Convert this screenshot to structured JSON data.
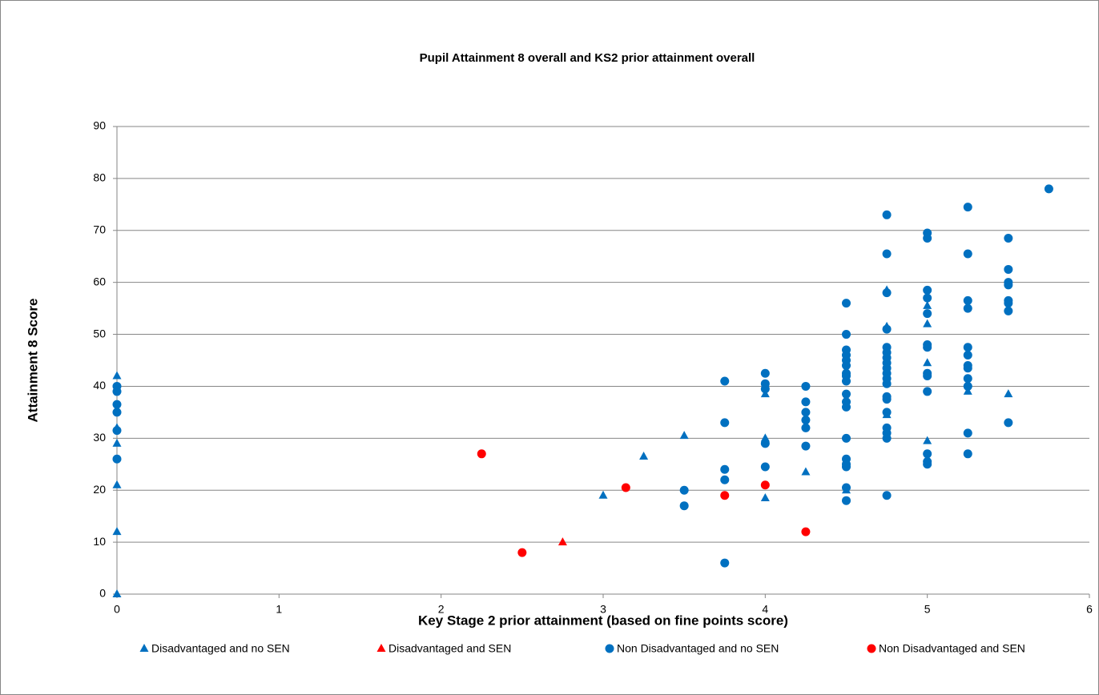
{
  "chart_data": {
    "type": "scatter",
    "title": "Pupil Attainment 8 overall and KS2 prior attainment overall",
    "x_label": "Key Stage 2 prior attainment (based on fine points score)",
    "y_label": "Attainment 8 Score",
    "xlim": [
      0,
      6
    ],
    "xticks": [
      0,
      1,
      2,
      3,
      4,
      5,
      6
    ],
    "ylim": [
      0,
      90
    ],
    "yticks": [
      0,
      10,
      20,
      30,
      40,
      50,
      60,
      70,
      80,
      90
    ],
    "grid": true,
    "legend": "bottom",
    "series": [
      {
        "name": "Disadvantaged and no SEN",
        "color": "#0070c0",
        "marker": "triangle",
        "x": [
          0,
          0,
          0,
          0,
          0,
          0,
          3,
          3.25,
          3.5,
          4,
          4,
          4,
          4.25,
          4.5,
          4.75,
          4.75,
          4.75,
          5,
          5,
          5,
          5,
          5.25,
          5.5
        ],
        "y": [
          42,
          32,
          29,
          21,
          12,
          0,
          19,
          26.5,
          30.5,
          38.5,
          30,
          18.5,
          23.5,
          20,
          58.5,
          51.5,
          34.5,
          55.5,
          52,
          44.5,
          29.5,
          39,
          38.5
        ]
      },
      {
        "name": "Disadvantaged and SEN",
        "color": "#ff0000",
        "marker": "triangle",
        "x": [
          2.75
        ],
        "y": [
          10
        ]
      },
      {
        "name": "Non Disadvantaged and no SEN",
        "color": "#0070c0",
        "marker": "circle",
        "x": [
          0,
          0,
          0,
          0,
          0,
          0,
          3.5,
          3.5,
          3.75,
          3.75,
          3.75,
          3.75,
          3.75,
          4,
          4,
          4,
          4,
          4,
          4.25,
          4.25,
          4.25,
          4.25,
          4.25,
          4.25,
          4.5,
          4.5,
          4.5,
          4.5,
          4.5,
          4.5,
          4.5,
          4.5,
          4.5,
          4.5,
          4.5,
          4.5,
          4.5,
          4.5,
          4.5,
          4.5,
          4.5,
          4.5,
          4.75,
          4.75,
          4.75,
          4.75,
          4.75,
          4.75,
          4.75,
          4.75,
          4.75,
          4.75,
          4.75,
          4.75,
          4.75,
          4.75,
          4.75,
          4.75,
          4.75,
          4.75,
          4.75,
          5,
          5,
          5,
          5,
          5,
          5,
          5,
          5,
          5,
          5,
          5,
          5,
          5,
          5.25,
          5.25,
          5.25,
          5.25,
          5.25,
          5.25,
          5.25,
          5.25,
          5.25,
          5.25,
          5.25,
          5.25,
          5.5,
          5.5,
          5.5,
          5.5,
          5.5,
          5.5,
          5.5,
          5.5,
          5.75
        ],
        "y": [
          40,
          39,
          36.5,
          35,
          31.5,
          26,
          20,
          17,
          41,
          33,
          24,
          22,
          6,
          42.5,
          40.5,
          39.5,
          29,
          24.5,
          40,
          37,
          35,
          33.5,
          32,
          28.5,
          56,
          50,
          47,
          46,
          45,
          44,
          42.5,
          42,
          41,
          38.5,
          37,
          36,
          30,
          26,
          25,
          24.5,
          20.5,
          18,
          73,
          65.5,
          58,
          51,
          47.5,
          46.5,
          45.5,
          44.5,
          43.5,
          42.5,
          41.5,
          40.5,
          38,
          37.5,
          35,
          32,
          31,
          30,
          19,
          69.5,
          68.5,
          58.5,
          57,
          54,
          48,
          47.5,
          42.5,
          42,
          39,
          27,
          25.5,
          25,
          74.5,
          65.5,
          56.5,
          55,
          47.5,
          46,
          44,
          43.5,
          41.5,
          40,
          31,
          27,
          68.5,
          62.5,
          60,
          59.5,
          56.5,
          56,
          54.5,
          33,
          78
        ]
      },
      {
        "name": "Non Disadvantaged and SEN",
        "color": "#ff0000",
        "marker": "circle",
        "x": [
          2.25,
          2.5,
          3.14,
          3.75,
          4,
          4.25
        ],
        "y": [
          27,
          8,
          20.5,
          19,
          21,
          12
        ]
      }
    ]
  }
}
